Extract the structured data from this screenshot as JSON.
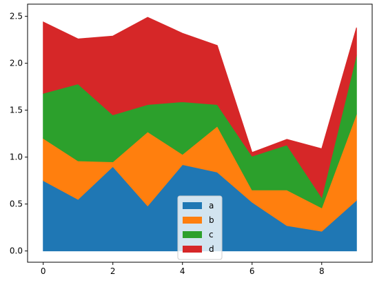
{
  "chart_data": {
    "type": "area",
    "stacked": true,
    "x": [
      0,
      1,
      2,
      3,
      4,
      5,
      6,
      7,
      8,
      9
    ],
    "series": [
      {
        "name": "a",
        "color": "#1f77b4",
        "values": [
          0.75,
          0.55,
          0.9,
          0.48,
          0.92,
          0.84,
          0.52,
          0.27,
          0.21,
          0.54
        ]
      },
      {
        "name": "b",
        "color": "#ff7f0e",
        "values": [
          0.45,
          0.41,
          0.05,
          0.79,
          0.11,
          0.49,
          0.13,
          0.38,
          0.25,
          0.92
        ]
      },
      {
        "name": "c",
        "color": "#2ca02c",
        "values": [
          0.48,
          0.82,
          0.5,
          0.29,
          0.56,
          0.23,
          0.36,
          0.48,
          0.11,
          0.63
        ]
      },
      {
        "name": "d",
        "color": "#d62728",
        "values": [
          0.76,
          0.48,
          0.84,
          0.93,
          0.73,
          0.63,
          0.04,
          0.06,
          0.52,
          0.29
        ]
      }
    ],
    "xticks": [
      0,
      2,
      4,
      6,
      8
    ],
    "yticks": [
      0.0,
      0.5,
      1.0,
      1.5,
      2.0,
      2.5
    ],
    "xlim": [
      -0.45,
      9.45
    ],
    "ylim": [
      -0.12,
      2.63
    ],
    "title": "",
    "xlabel": "",
    "ylabel": "",
    "grid": false,
    "legend": "lower-center"
  }
}
